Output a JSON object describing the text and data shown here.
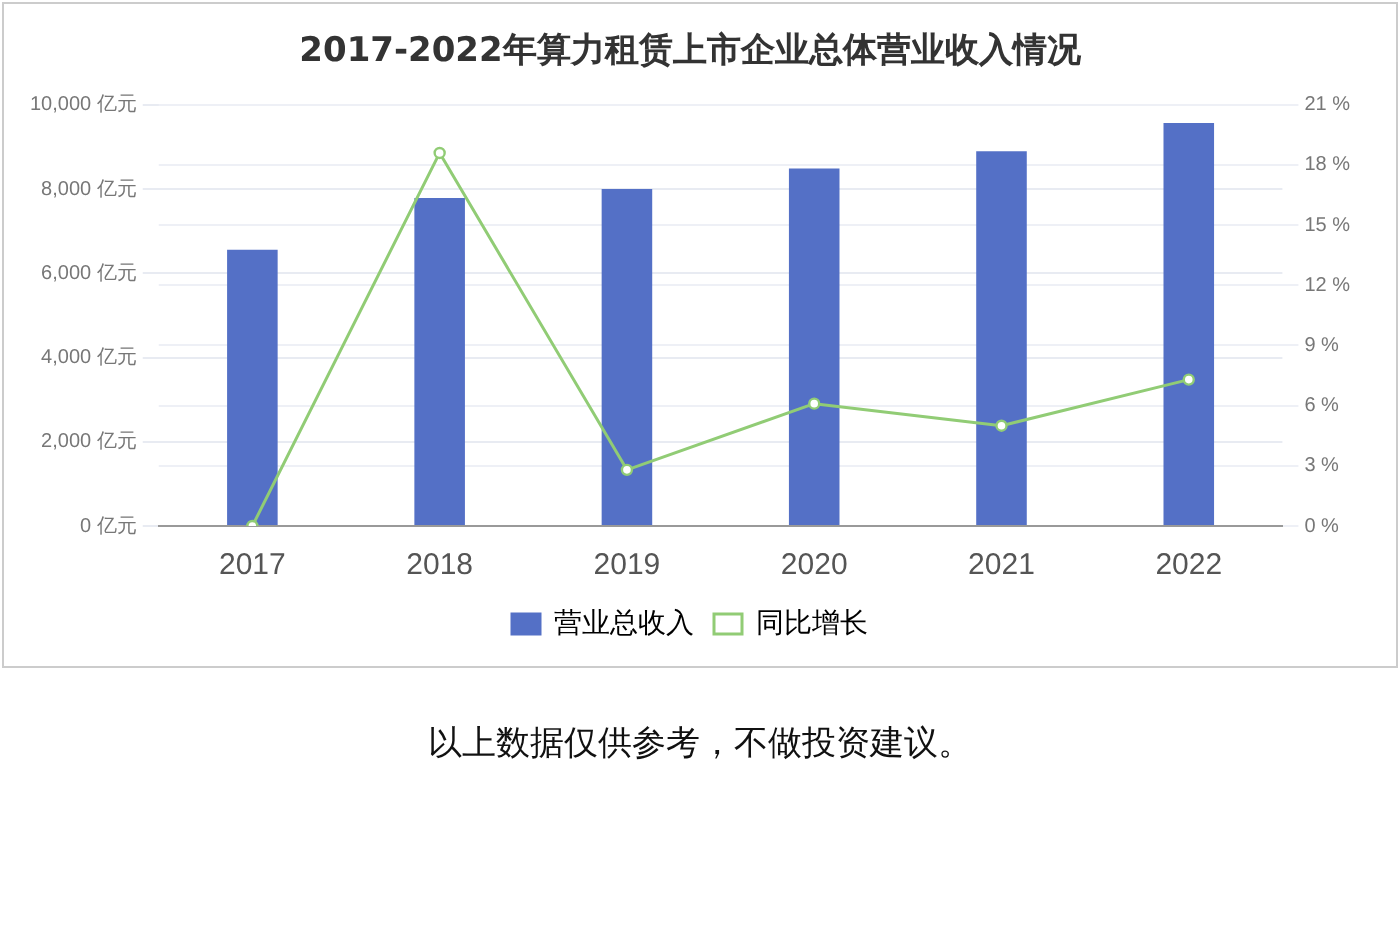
{
  "chart_data": {
    "type": "bar",
    "title": "2017-2022年算力租赁上市企业总体营业收入情况",
    "categories": [
      "2017",
      "2018",
      "2019",
      "2020",
      "2021",
      "2022"
    ],
    "series": [
      {
        "name": "营业总收入",
        "color": "#5470c6",
        "values": [
          6560,
          7790,
          8000,
          8490,
          8900,
          9570
        ]
      },
      {
        "name": "同比增长",
        "type": "line",
        "axis": "y2",
        "color": "#91cc75",
        "marker": "circle",
        "values": [
          0,
          18.6,
          2.8,
          6.1,
          5.0,
          7.3
        ]
      }
    ],
    "ylim": [
      0,
      10000
    ],
    "yticks": [
      {
        "value": 0,
        "label": "0 亿元"
      },
      {
        "value": 2000,
        "label": "2,000 亿元"
      },
      {
        "value": 4000,
        "label": "4,000 亿元"
      },
      {
        "value": 6000,
        "label": "6,000 亿元"
      },
      {
        "value": 8000,
        "label": "8,000 亿元"
      },
      {
        "value": 10000,
        "label": "10,000 亿元"
      }
    ],
    "y2lim": [
      0,
      21
    ],
    "y2ticks": [
      {
        "value": 0,
        "label": "0 %"
      },
      {
        "value": 3,
        "label": "3 %"
      },
      {
        "value": 6,
        "label": "6 %"
      },
      {
        "value": 9,
        "label": "9 %"
      },
      {
        "value": 12,
        "label": "12 %"
      },
      {
        "value": 15,
        "label": "15 %"
      },
      {
        "value": 18,
        "label": "18 %"
      },
      {
        "value": 21,
        "label": "21 %"
      }
    ],
    "grid": true,
    "legend": "bottom",
    "annotations": [
      "以上数据仅供参考，不做投资建议。"
    ]
  }
}
